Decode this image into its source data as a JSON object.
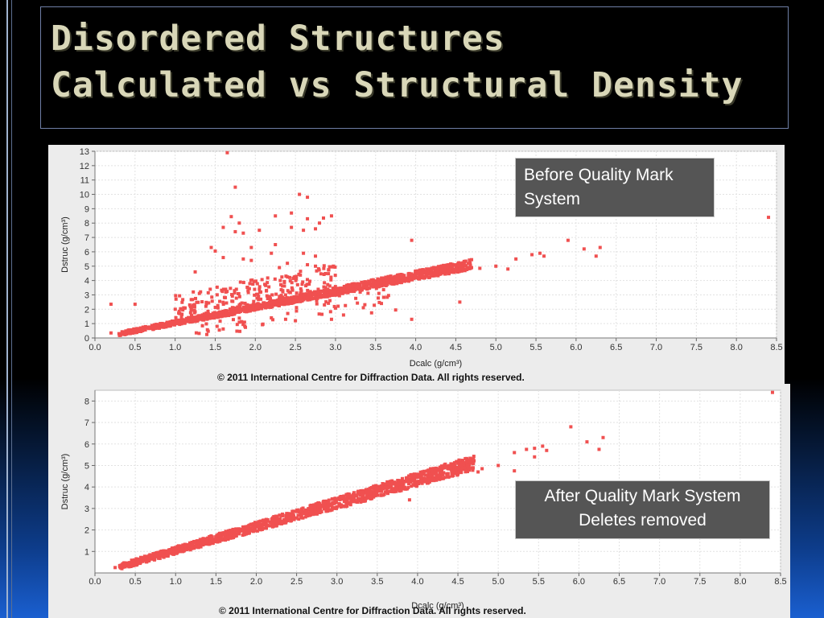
{
  "slide": {
    "title_line1": "Disordered Structures",
    "title_line2": "Calculated vs Structural Density"
  },
  "chart_data": [
    {
      "type": "scatter",
      "xlabel": "Dcalc (g/cm³)",
      "ylabel": "Dstruc (g/cm³)",
      "xlim": [
        0.0,
        8.5
      ],
      "ylim": [
        0,
        13
      ],
      "x_ticks": [
        "0.0",
        "0.5",
        "1.0",
        "1.5",
        "2.0",
        "2.5",
        "3.0",
        "3.5",
        "4.0",
        "4.5",
        "5.0",
        "5.5",
        "6.0",
        "6.5",
        "7.0",
        "7.5",
        "8.0",
        "8.5"
      ],
      "y_ticks": [
        "0",
        "1",
        "2",
        "3",
        "4",
        "5",
        "6",
        "7",
        "8",
        "9",
        "10",
        "11",
        "12",
        "13"
      ],
      "color": "#f05050",
      "grid": true,
      "annotation": "Before Quality Mark System",
      "copyright": "© 2011 International Centre for Diffraction Data. All rights reserved.",
      "outliers": [
        [
          1.65,
          12.9
        ],
        [
          1.75,
          10.5
        ],
        [
          2.55,
          10.0
        ],
        [
          2.65,
          9.8
        ],
        [
          2.25,
          8.5
        ],
        [
          2.45,
          8.7
        ],
        [
          2.65,
          8.3
        ],
        [
          2.85,
          8.35
        ],
        [
          1.7,
          8.45
        ],
        [
          1.8,
          8.0
        ],
        [
          1.75,
          7.4
        ],
        [
          1.85,
          7.3
        ],
        [
          1.6,
          7.7
        ],
        [
          2.05,
          7.5
        ],
        [
          2.45,
          7.7
        ],
        [
          2.6,
          7.5
        ],
        [
          2.75,
          7.6
        ],
        [
          2.95,
          8.5
        ],
        [
          2.8,
          8.0
        ],
        [
          1.45,
          6.3
        ],
        [
          1.5,
          6.05
        ],
        [
          1.95,
          6.3
        ],
        [
          2.25,
          6.5
        ],
        [
          2.2,
          5.9
        ],
        [
          2.6,
          5.9
        ],
        [
          2.75,
          5.7
        ],
        [
          3.95,
          6.8
        ],
        [
          1.6,
          5.6
        ],
        [
          1.85,
          5.5
        ],
        [
          2.4,
          5.2
        ],
        [
          1.95,
          5.4
        ],
        [
          2.65,
          5.1
        ],
        [
          2.3,
          4.9
        ],
        [
          1.25,
          4.6
        ],
        [
          2.75,
          5.0
        ],
        [
          4.55,
          2.5
        ],
        [
          3.45,
          1.75
        ],
        [
          3.75,
          1.95
        ],
        [
          3.95,
          1.3
        ],
        [
          4.8,
          4.85
        ],
        [
          5.0,
          5.0
        ],
        [
          5.15,
          4.8
        ],
        [
          5.25,
          5.5
        ],
        [
          5.45,
          5.8
        ],
        [
          5.55,
          5.9
        ],
        [
          5.6,
          5.7
        ],
        [
          5.9,
          6.8
        ],
        [
          6.1,
          6.2
        ],
        [
          6.25,
          5.7
        ],
        [
          6.3,
          6.3
        ],
        [
          8.4,
          8.4
        ],
        [
          0.2,
          2.35
        ],
        [
          0.5,
          2.35
        ],
        [
          0.2,
          0.35
        ],
        [
          0.3,
          0.3
        ],
        [
          2.5,
          1.2
        ],
        [
          2.95,
          1.3
        ],
        [
          3.1,
          1.6
        ],
        [
          1.8,
          1.1
        ],
        [
          2.2,
          1.4
        ]
      ]
    },
    {
      "type": "scatter",
      "xlabel": "Dcalc (g/cm³)",
      "ylabel": "Dstruc (g/cm³)",
      "xlim": [
        0.0,
        8.5
      ],
      "ylim": [
        0,
        8.5
      ],
      "x_ticks": [
        "0.0",
        "0.5",
        "1.0",
        "1.5",
        "2.0",
        "2.5",
        "3.0",
        "3.5",
        "4.0",
        "4.5",
        "5.0",
        "5.5",
        "6.0",
        "6.5",
        "7.0",
        "7.5",
        "8.0",
        "8.5"
      ],
      "y_ticks": [
        "1",
        "2",
        "3",
        "4",
        "5",
        "6",
        "7",
        "8"
      ],
      "color": "#f05050",
      "grid": true,
      "annotation": "After Quality Mark System Deletes removed",
      "copyright": "© 2011 International Centre for Diffraction Data. All rights reserved.",
      "outliers": [
        [
          0.25,
          0.25
        ],
        [
          4.5,
          5.1
        ],
        [
          4.8,
          4.85
        ],
        [
          5.0,
          5.0
        ],
        [
          5.2,
          4.75
        ],
        [
          5.2,
          5.6
        ],
        [
          5.35,
          5.75
        ],
        [
          5.45,
          5.8
        ],
        [
          5.55,
          5.9
        ],
        [
          5.45,
          5.4
        ],
        [
          5.6,
          5.7
        ],
        [
          5.9,
          6.8
        ],
        [
          6.1,
          6.1
        ],
        [
          6.25,
          5.75
        ],
        [
          6.3,
          6.3
        ],
        [
          8.4,
          8.4
        ],
        [
          4.75,
          4.7
        ],
        [
          3.9,
          3.4
        ]
      ]
    }
  ],
  "callouts": {
    "top_line1": "Before Quality Mark",
    "top_line2": "System",
    "bottom_line1": "After Quality Mark System",
    "bottom_line2": "Deletes removed"
  }
}
